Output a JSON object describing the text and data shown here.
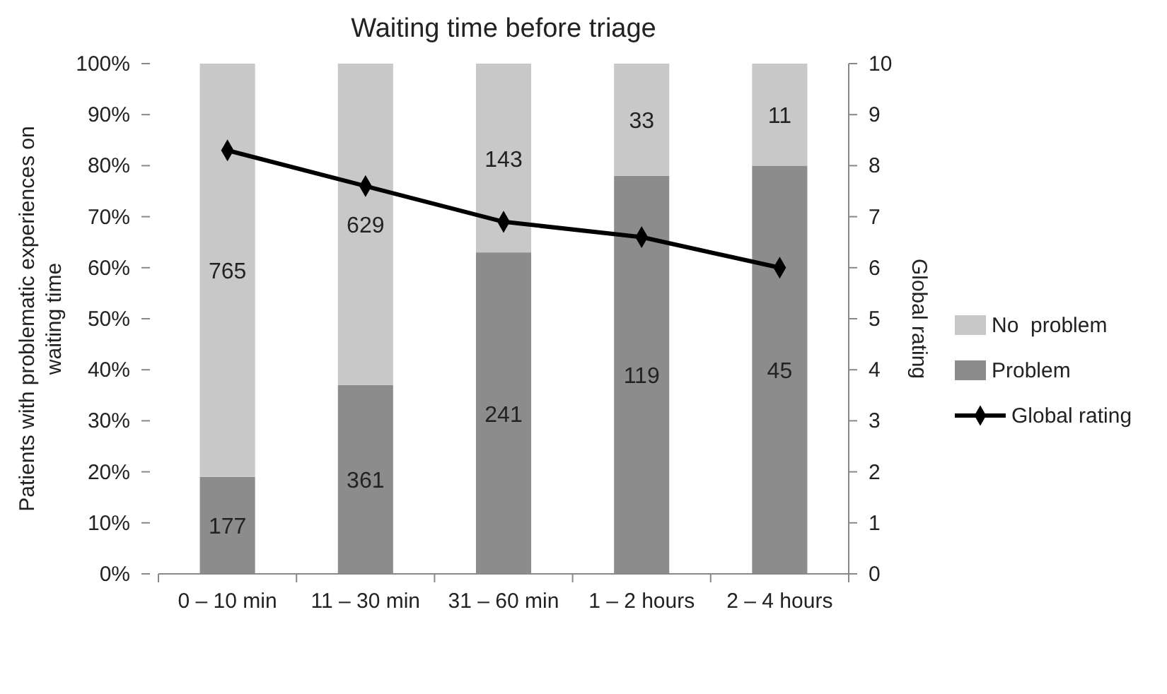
{
  "chart_data": {
    "type": "bar",
    "stacked": true,
    "title": "Waiting time before triage",
    "ylabel": "Patients with problematic experiences on waiting time",
    "y2label": "Global rating",
    "categories": [
      "0 – 10 min",
      "11 – 30 min",
      "31 – 60 min",
      "1 – 2 hours",
      "2 – 4 hours"
    ],
    "series": [
      {
        "name": "Problem",
        "color": "#8c8c8c",
        "values": [
          19,
          37,
          63,
          78,
          80
        ]
      },
      {
        "name": "No  problem",
        "color": "#c8c8c8",
        "values": [
          81,
          63,
          37,
          22,
          20
        ]
      },
      {
        "name": "Global rating",
        "type": "line",
        "axis": "y2",
        "color": "#000000",
        "values": [
          8.3,
          7.6,
          6.9,
          6.6,
          6.0
        ],
        "marker": "diamond"
      }
    ],
    "annotations": [
      "177",
      "361",
      "241",
      "119",
      "45",
      "765",
      "629",
      "143",
      "33",
      "11"
    ],
    "ylim": [
      0,
      100
    ],
    "yticks": [
      {
        "value": 0,
        "label": "0%"
      },
      {
        "value": 10,
        "label": "10%"
      },
      {
        "value": 20,
        "label": "20%"
      },
      {
        "value": 30,
        "label": "30%"
      },
      {
        "value": 40,
        "label": "40%"
      },
      {
        "value": 50,
        "label": "50%"
      },
      {
        "value": 60,
        "label": "60%"
      },
      {
        "value": 70,
        "label": "70%"
      },
      {
        "value": 80,
        "label": "80%"
      },
      {
        "value": 90,
        "label": "90%"
      },
      {
        "value": 100,
        "label": "100%"
      }
    ],
    "y2lim": [
      0,
      10
    ],
    "y2ticks": [
      0,
      1,
      2,
      3,
      4,
      5,
      6,
      7,
      8,
      9,
      10
    ],
    "grid": false,
    "legend": "right"
  }
}
